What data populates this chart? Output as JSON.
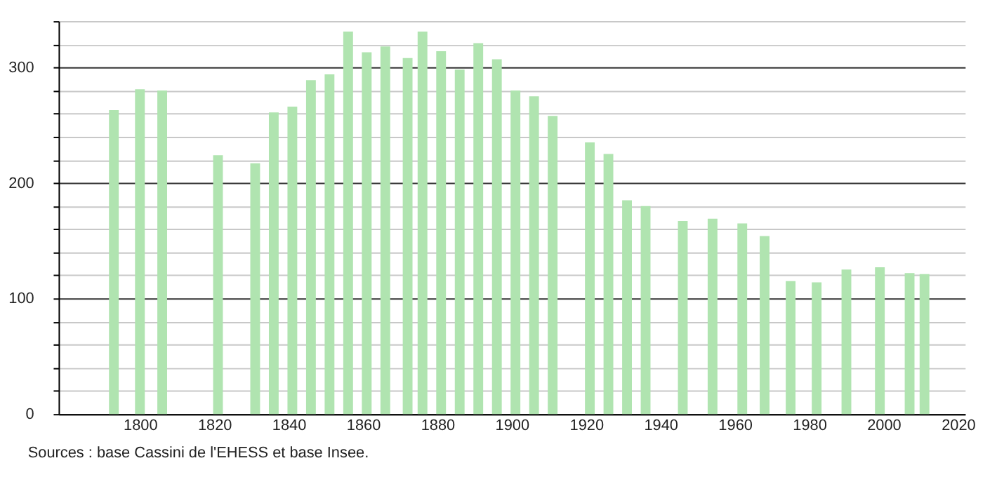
{
  "chart_data": {
    "type": "bar",
    "x": [
      1793,
      1800,
      1806,
      1821,
      1831,
      1836,
      1841,
      1846,
      1851,
      1856,
      1861,
      1866,
      1872,
      1876,
      1881,
      1886,
      1891,
      1896,
      1901,
      1906,
      1911,
      1921,
      1926,
      1931,
      1936,
      1946,
      1954,
      1962,
      1968,
      1975,
      1982,
      1990,
      1999,
      2007,
      2011
    ],
    "values": [
      263,
      281,
      280,
      224,
      217,
      261,
      266,
      289,
      294,
      331,
      313,
      318,
      308,
      331,
      314,
      298,
      321,
      307,
      280,
      275,
      258,
      235,
      225,
      185,
      180,
      167,
      169,
      165,
      154,
      115,
      114,
      125,
      127,
      122,
      121
    ],
    "color": "#b0e4b0",
    "xlim": [
      1780,
      2020
    ],
    "xticks": [
      1800,
      1820,
      1840,
      1860,
      1880,
      1900,
      1920,
      1940,
      1960,
      1980,
      2000,
      2020
    ],
    "ylim": [
      0,
      340
    ],
    "yticks": [
      0,
      {
        "value": 20,
        "label": null
      },
      {
        "value": 40,
        "label": null
      },
      {
        "value": 60,
        "label": null
      },
      {
        "value": 80,
        "label": null
      },
      100,
      {
        "value": 120,
        "label": null
      },
      {
        "value": 140,
        "label": null
      },
      {
        "value": 160,
        "label": null
      },
      {
        "value": 180,
        "label": null
      },
      200,
      {
        "value": 220,
        "label": null
      },
      {
        "value": 240,
        "label": null
      },
      {
        "value": 260,
        "label": null
      },
      {
        "value": 280,
        "label": null
      },
      300,
      {
        "value": 320,
        "label": null
      },
      {
        "value": 340,
        "label": null
      }
    ],
    "grid": "y",
    "annotations": [
      "Sources : base Cassini de l'EHESS et base Insee."
    ]
  }
}
